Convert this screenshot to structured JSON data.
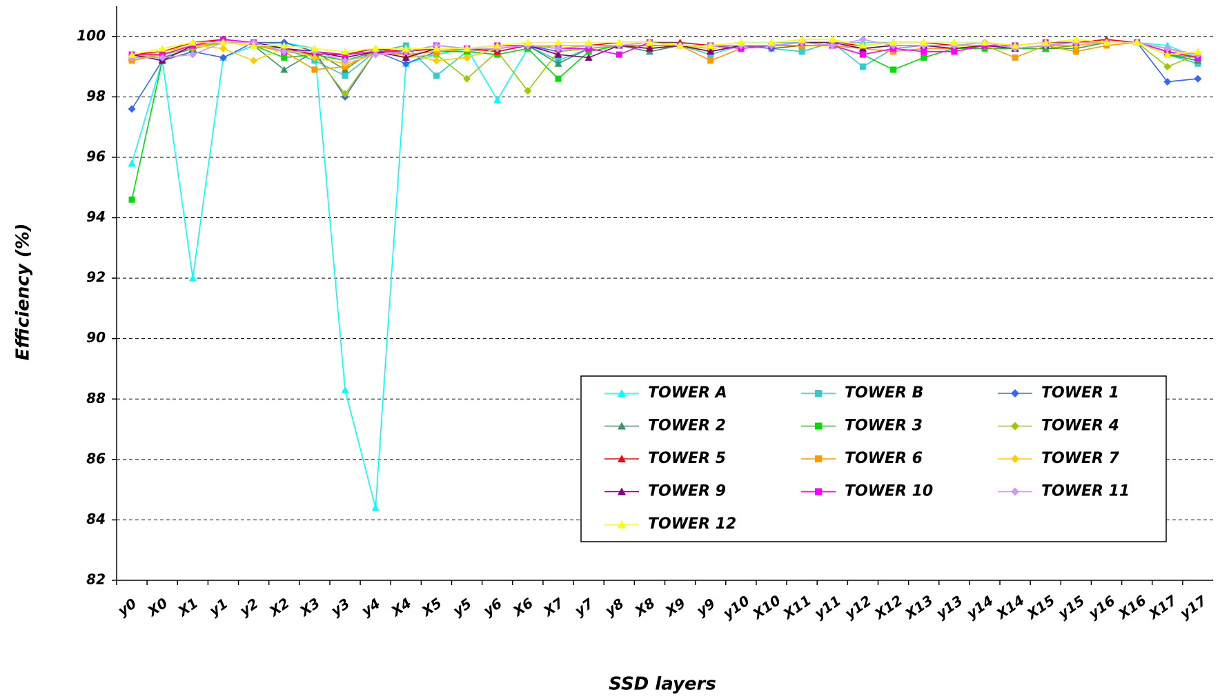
{
  "chart_data": {
    "type": "line",
    "x_label": "SSD layers",
    "y_label": "Efficiency (%)",
    "categories": [
      "y0",
      "X0",
      "X1",
      "y1",
      "y2",
      "X2",
      "X3",
      "y3",
      "y4",
      "X4",
      "X5",
      "y5",
      "y6",
      "X6",
      "X7",
      "y7",
      "y8",
      "X8",
      "X9",
      "y9",
      "y10",
      "X10",
      "X11",
      "y11",
      "y12",
      "X12",
      "X13",
      "y13",
      "y14",
      "X14",
      "X15",
      "y15",
      "y16",
      "X16",
      "X17",
      "y17"
    ],
    "ylim": [
      82,
      101
    ],
    "yticks": [
      82,
      84,
      86,
      88,
      90,
      92,
      94,
      96,
      98,
      100
    ],
    "grid": true,
    "series": [
      {
        "name": "TOWER A",
        "color": "#00ffff",
        "marker": "triangle",
        "values": [
          95.8,
          99.2,
          92.0,
          99.3,
          99.7,
          99.8,
          99.6,
          88.3,
          84.4,
          99.1,
          99.4,
          99.6,
          97.9,
          99.6,
          99.7,
          99.7,
          99.8,
          99.8,
          99.8,
          99.7,
          99.8,
          99.8,
          99.8,
          99.8,
          99.8,
          99.8,
          99.8,
          99.8,
          99.8,
          99.7,
          99.8,
          99.8,
          99.8,
          99.8,
          99.7,
          99.3
        ]
      },
      {
        "name": "TOWER B",
        "color": "#33cccc",
        "marker": "square",
        "values": [
          99.3,
          99.3,
          99.6,
          99.8,
          99.7,
          99.6,
          99.2,
          98.7,
          99.5,
          99.7,
          98.7,
          99.5,
          99.6,
          99.7,
          99.2,
          99.6,
          99.7,
          99.7,
          99.7,
          99.4,
          99.7,
          99.6,
          99.5,
          99.8,
          99.0,
          99.6,
          99.7,
          99.7,
          99.7,
          99.6,
          99.7,
          99.7,
          99.8,
          99.8,
          99.4,
          99.1
        ]
      },
      {
        "name": "TOWER 1",
        "color": "#3366ff",
        "marker": "diamond",
        "values": [
          97.6,
          99.2,
          99.5,
          99.3,
          99.8,
          99.8,
          99.5,
          98.0,
          99.5,
          99.1,
          99.5,
          99.6,
          99.6,
          99.7,
          99.5,
          99.6,
          99.7,
          99.7,
          99.7,
          99.6,
          99.7,
          99.6,
          99.7,
          99.7,
          99.6,
          99.7,
          99.7,
          99.7,
          99.7,
          99.6,
          99.7,
          99.7,
          99.8,
          99.8,
          98.5,
          98.6
        ]
      },
      {
        "name": "TOWER 2",
        "color": "#339966",
        "marker": "triangle",
        "values": [
          99.3,
          99.3,
          99.6,
          99.8,
          99.7,
          98.9,
          99.5,
          98.9,
          99.6,
          99.4,
          99.5,
          99.6,
          99.6,
          99.7,
          99.1,
          99.6,
          99.7,
          99.5,
          99.7,
          99.5,
          99.7,
          99.7,
          99.7,
          99.7,
          99.6,
          99.7,
          99.7,
          99.7,
          99.7,
          99.6,
          99.6,
          99.6,
          99.8,
          99.8,
          99.4,
          99.2
        ]
      },
      {
        "name": "TOWER 3",
        "color": "#00dd00",
        "marker": "square",
        "values": [
          94.6,
          99.2,
          99.7,
          99.8,
          99.7,
          99.3,
          99.4,
          99.2,
          99.5,
          99.4,
          99.5,
          99.5,
          99.4,
          99.6,
          98.6,
          99.5,
          99.7,
          99.6,
          99.7,
          99.5,
          99.7,
          99.7,
          99.7,
          99.7,
          99.4,
          98.9,
          99.3,
          99.6,
          99.6,
          99.6,
          99.6,
          99.7,
          99.8,
          99.8,
          99.4,
          99.3
        ]
      },
      {
        "name": "TOWER 4",
        "color": "#99cc00",
        "marker": "diamond",
        "values": [
          99.3,
          99.4,
          99.6,
          99.8,
          99.7,
          99.5,
          99.4,
          98.1,
          99.5,
          99.3,
          99.4,
          98.6,
          99.5,
          98.2,
          99.5,
          99.6,
          99.7,
          99.6,
          99.7,
          99.5,
          99.7,
          99.7,
          99.7,
          99.7,
          99.6,
          99.7,
          99.7,
          99.7,
          99.7,
          99.6,
          99.7,
          99.8,
          99.8,
          99.8,
          99.0,
          99.4
        ]
      },
      {
        "name": "TOWER 5",
        "color": "#ff0000",
        "marker": "triangle",
        "values": [
          99.4,
          99.5,
          99.8,
          99.9,
          99.8,
          99.6,
          99.4,
          99.4,
          99.6,
          99.5,
          99.6,
          99.6,
          99.5,
          99.7,
          99.6,
          99.7,
          99.8,
          99.8,
          99.8,
          99.7,
          99.7,
          99.7,
          99.8,
          99.8,
          99.7,
          99.8,
          99.8,
          99.7,
          99.8,
          99.7,
          99.8,
          99.8,
          99.9,
          99.8,
          99.6,
          99.4
        ]
      },
      {
        "name": "TOWER 6",
        "color": "#ff9900",
        "marker": "square",
        "values": [
          99.2,
          99.4,
          99.7,
          99.8,
          99.7,
          99.5,
          98.9,
          99.0,
          99.5,
          99.4,
          99.5,
          99.6,
          99.6,
          99.7,
          99.6,
          99.7,
          99.7,
          99.7,
          99.7,
          99.2,
          99.6,
          99.7,
          99.7,
          99.7,
          99.6,
          99.5,
          99.6,
          99.6,
          99.7,
          99.3,
          99.7,
          99.5,
          99.7,
          99.8,
          99.5,
          99.3
        ]
      },
      {
        "name": "TOWER 7",
        "color": "#ffcc00",
        "marker": "diamond",
        "values": [
          99.3,
          99.5,
          99.7,
          99.6,
          99.2,
          99.6,
          99.3,
          99.1,
          99.4,
          99.4,
          99.2,
          99.3,
          99.6,
          99.7,
          99.7,
          99.7,
          99.7,
          99.8,
          99.7,
          99.6,
          99.7,
          99.7,
          99.8,
          99.8,
          99.6,
          99.7,
          99.7,
          99.7,
          99.7,
          99.6,
          99.7,
          99.7,
          99.8,
          99.8,
          99.6,
          99.3
        ]
      },
      {
        "name": "TOWER 9",
        "color": "#800080",
        "marker": "triangle",
        "values": [
          99.4,
          99.2,
          99.7,
          99.9,
          99.8,
          99.6,
          99.5,
          99.3,
          99.5,
          99.3,
          99.6,
          99.6,
          99.6,
          99.7,
          99.4,
          99.3,
          99.7,
          99.6,
          99.7,
          99.5,
          99.7,
          99.7,
          99.8,
          99.8,
          99.6,
          99.7,
          99.7,
          99.6,
          99.7,
          99.6,
          99.7,
          99.8,
          99.8,
          99.8,
          99.5,
          99.3
        ]
      },
      {
        "name": "TOWER 10",
        "color": "#ff00ff",
        "marker": "square",
        "values": [
          99.4,
          99.4,
          99.7,
          99.9,
          99.8,
          99.5,
          99.5,
          99.4,
          99.5,
          99.5,
          99.7,
          99.6,
          99.7,
          99.7,
          99.6,
          99.6,
          99.4,
          99.8,
          99.7,
          99.7,
          99.6,
          99.7,
          99.8,
          99.7,
          99.4,
          99.6,
          99.5,
          99.5,
          99.7,
          99.7,
          99.8,
          99.8,
          99.8,
          99.8,
          99.5,
          99.3
        ]
      },
      {
        "name": "TOWER 11",
        "color": "#cc99ff",
        "marker": "diamond",
        "values": [
          99.3,
          99.3,
          99.4,
          99.8,
          99.8,
          99.5,
          99.5,
          99.2,
          99.4,
          99.5,
          99.7,
          99.6,
          99.6,
          99.7,
          99.6,
          99.7,
          99.7,
          99.8,
          99.7,
          99.7,
          99.7,
          99.7,
          99.8,
          99.7,
          99.9,
          99.7,
          99.7,
          99.7,
          99.8,
          99.6,
          99.7,
          99.8,
          99.8,
          99.8,
          99.6,
          99.4
        ]
      },
      {
        "name": "TOWER 12",
        "color": "#ffff00",
        "marker": "triangle",
        "values": [
          99.4,
          99.6,
          99.8,
          99.8,
          99.7,
          99.7,
          99.6,
          99.5,
          99.6,
          99.6,
          99.6,
          99.6,
          99.7,
          99.8,
          99.8,
          99.8,
          99.8,
          99.8,
          99.7,
          99.7,
          99.8,
          99.8,
          99.9,
          99.9,
          99.7,
          99.8,
          99.8,
          99.8,
          99.8,
          99.7,
          99.8,
          99.9,
          99.8,
          99.8,
          99.4,
          99.5
        ]
      }
    ]
  }
}
